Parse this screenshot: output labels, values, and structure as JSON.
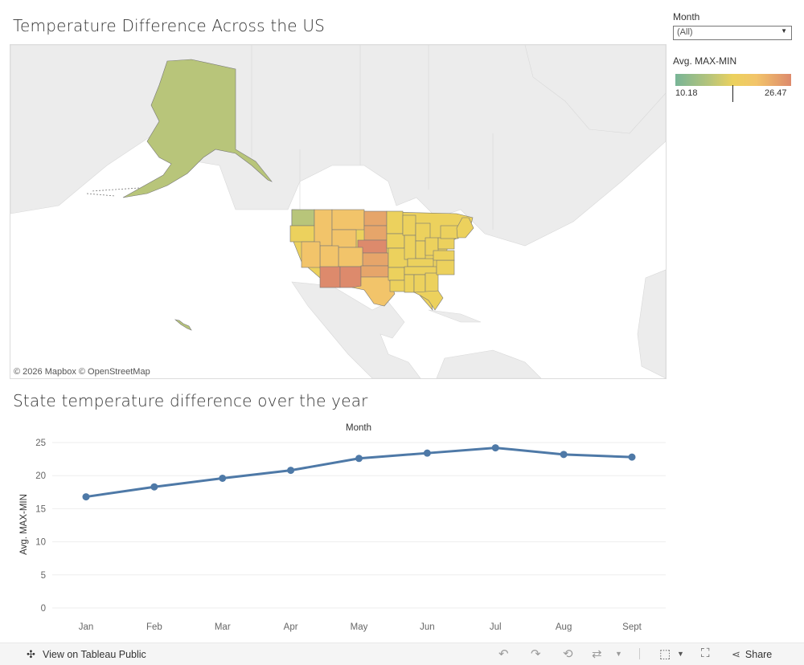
{
  "map": {
    "title": "Temperature Difference Across the US",
    "attribution": "© 2026 Mapbox  © OpenStreetMap"
  },
  "filter": {
    "label": "Month",
    "selected": "(All)"
  },
  "legend": {
    "title": "Avg. MAX-MIN",
    "min_label": "10.18",
    "max_label": "26.47",
    "colors": [
      "#78b597",
      "#b8c57a",
      "#ecd15d",
      "#f2c46a",
      "#dd8a6c"
    ]
  },
  "chart": {
    "title": "State temperature difference over the year"
  },
  "chart_data": {
    "type": "line",
    "title": "State temperature difference over the year",
    "top_axis_label": "Month",
    "xlabel": "",
    "ylabel": "Avg. MAX-MIN",
    "categories": [
      "Jan",
      "Feb",
      "Mar",
      "Apr",
      "May",
      "Jun",
      "Jul",
      "Aug",
      "Sept"
    ],
    "values": [
      16.8,
      18.3,
      19.6,
      20.8,
      22.6,
      23.4,
      24.2,
      23.2,
      22.8
    ],
    "y_ticks": [
      "0",
      "5",
      "10",
      "15",
      "20",
      "25"
    ],
    "ylim": [
      0,
      25
    ],
    "grid": true,
    "color": "#4e79a7"
  },
  "bottom_bar": {
    "view_on_tableau": "View on Tableau Public",
    "share": "Share",
    "icons": [
      "undo-icon",
      "redo-icon",
      "revert-icon",
      "refresh-icon",
      "download-icon",
      "fullscreen-icon",
      "share-icon"
    ]
  }
}
